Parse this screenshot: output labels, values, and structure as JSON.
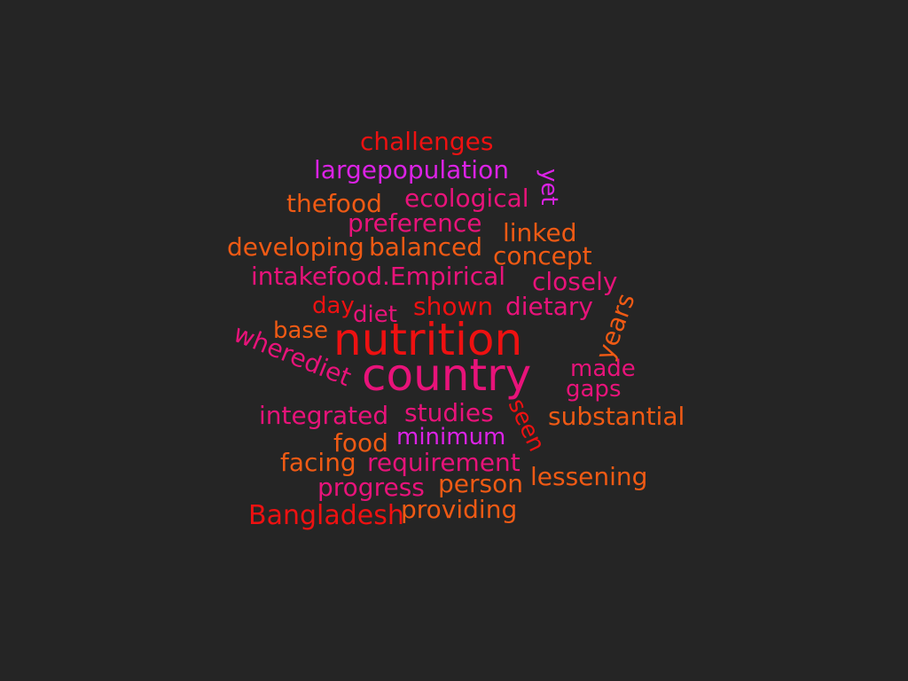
{
  "background": "#252525",
  "palette": {
    "red": "#ee1111",
    "orange": "#f05a14",
    "pink": "#e8137a",
    "magenta": "#dc22e6"
  },
  "words": [
    {
      "text": "challenges",
      "color": "#ee1111"
    },
    {
      "text": "largepopulation",
      "color": "#dc22e6"
    },
    {
      "text": "yet",
      "color": "#dc22e6"
    },
    {
      "text": "ecological",
      "color": "#e8137a"
    },
    {
      "text": "thefood",
      "color": "#f05a14"
    },
    {
      "text": "preference",
      "color": "#e8137a"
    },
    {
      "text": "linked",
      "color": "#f05a14"
    },
    {
      "text": "developing",
      "color": "#f05a14"
    },
    {
      "text": "balanced",
      "color": "#f05a14"
    },
    {
      "text": "concept",
      "color": "#f05a14"
    },
    {
      "text": "intakefood.Empirical",
      "color": "#e8137a"
    },
    {
      "text": "closely",
      "color": "#e8137a"
    },
    {
      "text": "years",
      "color": "#f05a14"
    },
    {
      "text": "day",
      "color": "#ee1111"
    },
    {
      "text": "diet",
      "color": "#e8137a"
    },
    {
      "text": "shown",
      "color": "#ee1111"
    },
    {
      "text": "dietary",
      "color": "#e8137a"
    },
    {
      "text": "wherediet",
      "color": "#e8137a"
    },
    {
      "text": "base",
      "color": "#f05a14"
    },
    {
      "text": "nutrition",
      "color": "#ee1111"
    },
    {
      "text": "country",
      "color": "#e8137a"
    },
    {
      "text": "made",
      "color": "#e8137a"
    },
    {
      "text": "gaps",
      "color": "#e8137a"
    },
    {
      "text": "integrated",
      "color": "#e8137a"
    },
    {
      "text": "studies",
      "color": "#e8137a"
    },
    {
      "text": "seen",
      "color": "#ee1111"
    },
    {
      "text": "substantial",
      "color": "#f05a14"
    },
    {
      "text": "food",
      "color": "#f05a14"
    },
    {
      "text": "minimum",
      "color": "#dc22e6"
    },
    {
      "text": "facing",
      "color": "#f05a14"
    },
    {
      "text": "requirement",
      "color": "#e8137a"
    },
    {
      "text": "lessening",
      "color": "#f05a14"
    },
    {
      "text": "progress",
      "color": "#e8137a"
    },
    {
      "text": "person",
      "color": "#f05a14"
    },
    {
      "text": "Bangladesh",
      "color": "#ee1111"
    },
    {
      "text": "providing",
      "color": "#f05a14"
    }
  ]
}
